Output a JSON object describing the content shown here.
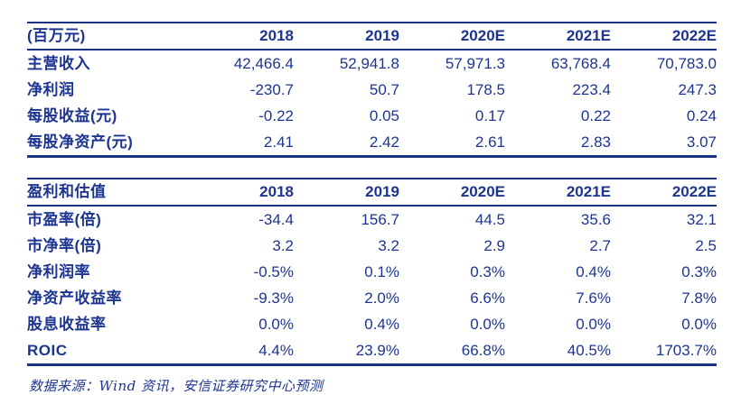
{
  "colors": {
    "navy": "#1d3590",
    "line": "#1b3182"
  },
  "table1": {
    "unit_label": "(百万元)",
    "years": [
      "2018",
      "2019",
      "2020E",
      "2021E",
      "2022E"
    ],
    "rows": [
      {
        "label": "主营收入",
        "values": [
          "42,466.4",
          "52,941.8",
          "57,971.3",
          "63,768.4",
          "70,783.0"
        ]
      },
      {
        "label": "净利润",
        "values": [
          "-230.7",
          "50.7",
          "178.5",
          "223.4",
          "247.3"
        ]
      },
      {
        "label": "每股收益(元)",
        "values": [
          "-0.22",
          "0.05",
          "0.17",
          "0.22",
          "0.24"
        ]
      },
      {
        "label": "每股净资产(元)",
        "values": [
          "2.41",
          "2.42",
          "2.61",
          "2.83",
          "3.07"
        ]
      }
    ]
  },
  "table2": {
    "header_label": "盈利和估值",
    "years": [
      "2018",
      "2019",
      "2020E",
      "2021E",
      "2022E"
    ],
    "rows": [
      {
        "label": "市盈率(倍)",
        "values": [
          "-34.4",
          "156.7",
          "44.5",
          "35.6",
          "32.1"
        ]
      },
      {
        "label": "市净率(倍)",
        "values": [
          "3.2",
          "3.2",
          "2.9",
          "2.7",
          "2.5"
        ]
      },
      {
        "label": "净利润率",
        "values": [
          "-0.5%",
          "0.1%",
          "0.3%",
          "0.4%",
          "0.3%"
        ]
      },
      {
        "label": "净资产收益率",
        "values": [
          "-9.3%",
          "2.0%",
          "6.6%",
          "7.6%",
          "7.8%"
        ]
      },
      {
        "label": "股息收益率",
        "values": [
          "0.0%",
          "0.4%",
          "0.0%",
          "0.0%",
          "0.0%"
        ]
      },
      {
        "label": "ROIC",
        "values": [
          "4.4%",
          "23.9%",
          "66.8%",
          "40.5%",
          "1703.7%"
        ]
      }
    ]
  },
  "footer": {
    "source": "数据来源：Wind 资讯，安信证券研究中心预测"
  }
}
